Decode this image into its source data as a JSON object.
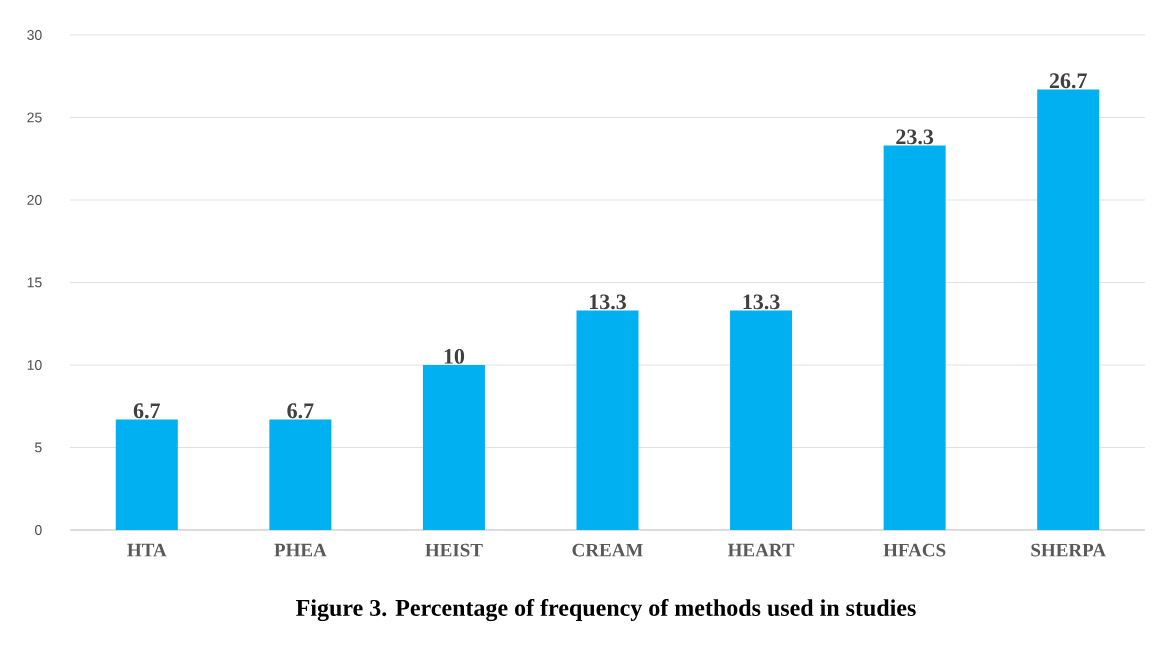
{
  "chart_data": {
    "type": "bar",
    "title": "Figure 3. Percentage of frequency of methods used in studies",
    "categories": [
      "HTA",
      "PHEA",
      "HEIST",
      "CREAM",
      "HEART",
      "HFACS",
      "SHERPA"
    ],
    "values": [
      6.7,
      6.7,
      10,
      13.3,
      13.3,
      23.3,
      26.7
    ],
    "color": "#00b0f0",
    "ylim": [
      0,
      30
    ],
    "yticks": [
      0,
      5,
      10,
      15,
      20,
      25,
      30
    ],
    "grid": "y",
    "data_labels": true
  }
}
